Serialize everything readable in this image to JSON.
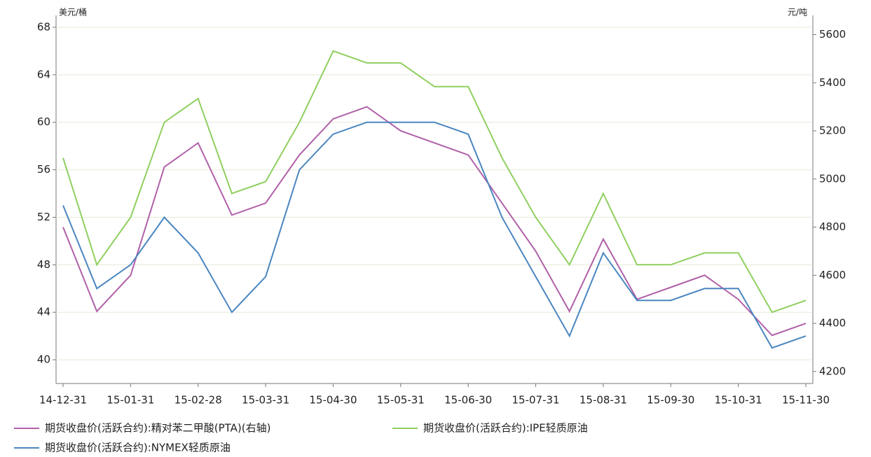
{
  "chart_data": {
    "type": "line",
    "y_unit": "美元/桶",
    "y2_unit": "元/吨",
    "categories": [
      "14-12-31",
      null,
      "15-01-31",
      null,
      "15-02-28",
      null,
      "15-03-31",
      null,
      "15-04-30",
      null,
      "15-05-31",
      null,
      "15-06-30",
      null,
      "15-07-31",
      null,
      "15-08-31",
      null,
      "15-09-30",
      null,
      "15-10-31",
      null,
      "15-11-30"
    ],
    "series": [
      {
        "name": "期货收盘价(活跃合约):精对苯二甲酸(PTA)(右轴)",
        "color": "#b060a8",
        "axis": "y2",
        "values": [
          4800,
          4450,
          4600,
          5050,
          5150,
          4850,
          4900,
          5100,
          5250,
          5300,
          5200,
          5150,
          5100,
          4900,
          4700,
          4450,
          4750,
          4500,
          4550,
          4600,
          4500,
          4350,
          4400
        ]
      },
      {
        "name": "期货收盘价(活跃合约):IPE轻质原油",
        "color": "#8fcf5f",
        "values": [
          57,
          48,
          52,
          60,
          62,
          54,
          55,
          60,
          66,
          65,
          65,
          63,
          63,
          57,
          52,
          48,
          54,
          48,
          48,
          49,
          49,
          44,
          45
        ]
      },
      {
        "name": "期货收盘价(活跃合约):NYMEX轻质原油",
        "color": "#4a86c0",
        "values": [
          53,
          46,
          48,
          52,
          49,
          44,
          47,
          56,
          59,
          60,
          60,
          60,
          59,
          52,
          47,
          42,
          49,
          45,
          45,
          46,
          46,
          41,
          42
        ]
      }
    ],
    "ylim": [
      38,
      69
    ],
    "yticks": [
      40,
      44,
      48,
      52,
      56,
      60,
      64,
      68
    ],
    "y2lim": [
      4150,
      5680
    ],
    "y2ticks": [
      4200,
      4400,
      4600,
      4800,
      5000,
      5200,
      5400,
      5600
    ],
    "grid": true
  }
}
